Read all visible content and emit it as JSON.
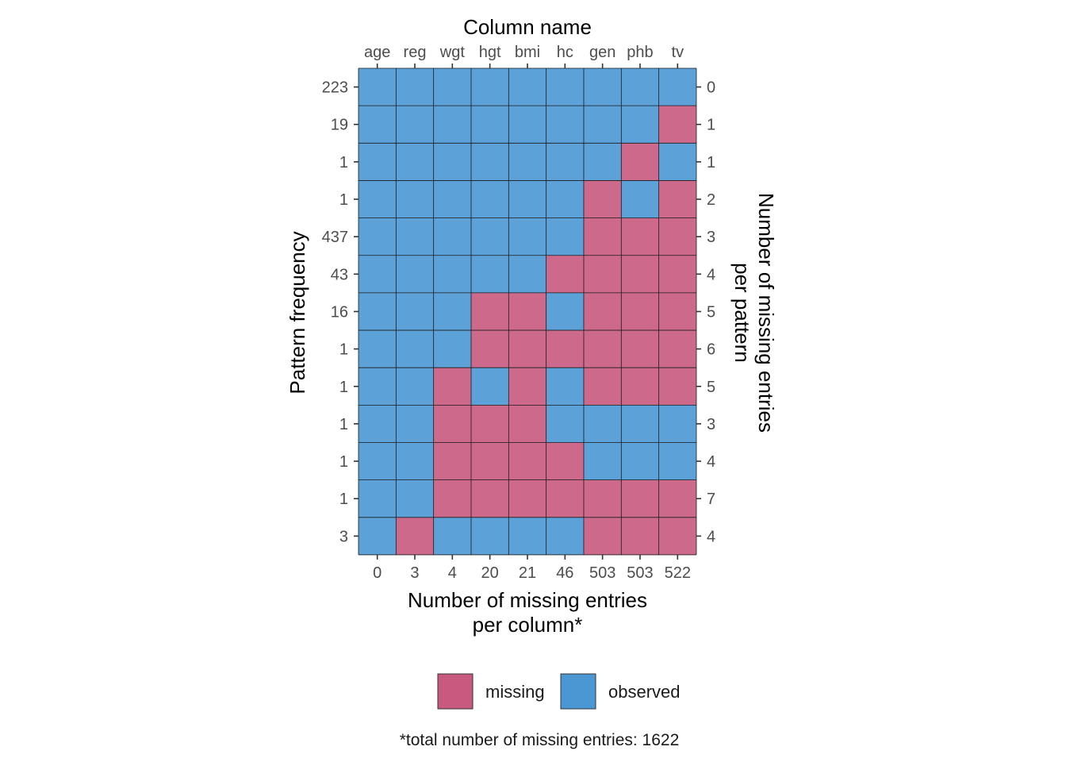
{
  "chart_data": {
    "type": "heatmap",
    "title": "Column name",
    "columns": [
      "age",
      "reg",
      "wgt",
      "hgt",
      "bmi",
      "hc",
      "gen",
      "phb",
      "tv"
    ],
    "missing_per_column": [
      "0",
      "3",
      "4",
      "20",
      "21",
      "46",
      "503",
      "503",
      "522"
    ],
    "pattern_frequency": [
      "223",
      "19",
      "1",
      "1",
      "437",
      "43",
      "16",
      "1",
      "1",
      "1",
      "1",
      "1",
      "3"
    ],
    "missing_per_pattern": [
      "0",
      "1",
      "1",
      "2",
      "3",
      "4",
      "5",
      "6",
      "5",
      "3",
      "4",
      "7",
      "4"
    ],
    "patterns": [
      [
        1,
        1,
        1,
        1,
        1,
        1,
        1,
        1,
        1
      ],
      [
        1,
        1,
        1,
        1,
        1,
        1,
        1,
        1,
        0
      ],
      [
        1,
        1,
        1,
        1,
        1,
        1,
        1,
        0,
        1
      ],
      [
        1,
        1,
        1,
        1,
        1,
        1,
        0,
        1,
        0
      ],
      [
        1,
        1,
        1,
        1,
        1,
        1,
        0,
        0,
        0
      ],
      [
        1,
        1,
        1,
        1,
        1,
        0,
        0,
        0,
        0
      ],
      [
        1,
        1,
        1,
        0,
        0,
        1,
        0,
        0,
        0
      ],
      [
        1,
        1,
        1,
        0,
        0,
        0,
        0,
        0,
        0
      ],
      [
        1,
        1,
        0,
        1,
        0,
        1,
        0,
        0,
        0
      ],
      [
        1,
        1,
        0,
        0,
        0,
        1,
        1,
        1,
        1
      ],
      [
        1,
        1,
        0,
        0,
        0,
        0,
        1,
        1,
        1
      ],
      [
        1,
        1,
        0,
        0,
        0,
        0,
        0,
        0,
        0
      ],
      [
        1,
        0,
        1,
        1,
        1,
        1,
        0,
        0,
        0
      ]
    ],
    "xlabel_line1": "Number of missing entries",
    "xlabel_line2": "per column*",
    "ylabel_left": "Pattern frequency",
    "ylabel_right_line1": "Number of missing entries",
    "ylabel_right_line2": "per pattern",
    "legend": {
      "position": "bottom",
      "missing_label": "missing",
      "observed_label": "observed"
    },
    "caption": "*total number of missing entries: 1622",
    "colors": {
      "missing": "#C85A80",
      "observed": "#4A97D3",
      "grid": "#1a1a1a"
    }
  }
}
